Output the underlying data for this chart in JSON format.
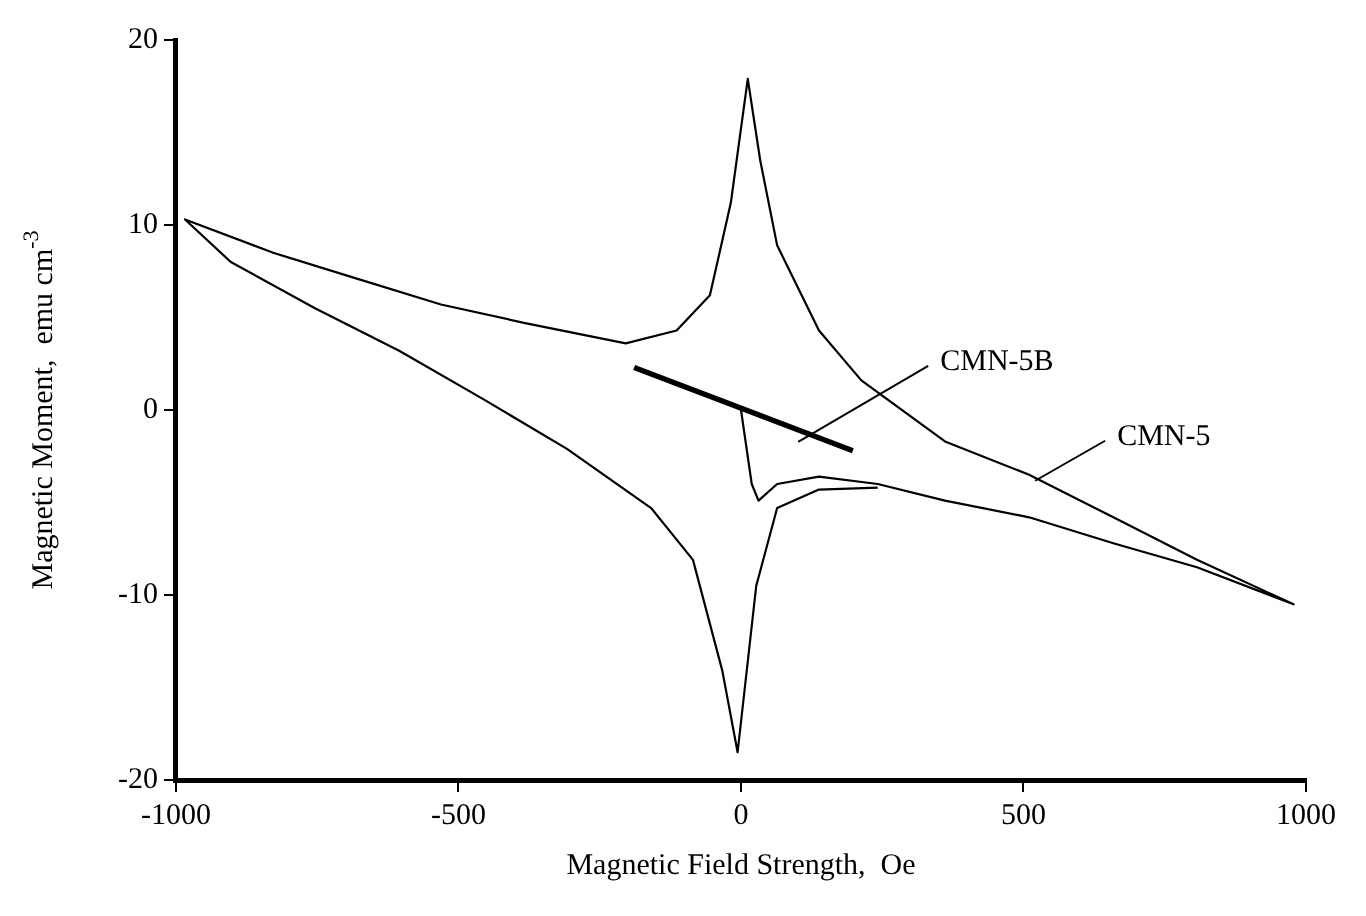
{
  "chart_data": {
    "type": "line",
    "xlabel": "Magnetic Field Strength,  Oe",
    "ylabel": "Magnetic Moment,  emu cm$^{-3}$",
    "xlim": [
      -1000,
      1000
    ],
    "xticks": [
      -1000,
      -500,
      0,
      500,
      1000
    ],
    "ylim": [
      -20,
      20
    ],
    "yticks": [
      -20,
      -10,
      0,
      10,
      20
    ],
    "grid": false,
    "legend": false,
    "marker": "none",
    "line_style": "solid",
    "series": [
      {
        "name": "CMN-5",
        "color": "#000000",
        "x": [
          0,
          19,
          31,
          64,
          138,
          242,
          361,
          510,
          659,
          807,
          978,
          807,
          659,
          510,
          361,
          213,
          138,
          64,
          34,
          12,
          -18,
          -55,
          -114,
          -204,
          -382,
          -531,
          -680,
          -828,
          -984,
          -903,
          -754,
          -605,
          -457,
          -308,
          -159,
          -85,
          -33,
          -6,
          27,
          64,
          138,
          242
        ],
        "values": [
          0,
          -4.0,
          -4.9,
          -4.0,
          -3.6,
          -4.0,
          -4.9,
          -5.8,
          -7.2,
          -8.5,
          -10.5,
          -8.1,
          -5.8,
          -3.5,
          -1.7,
          1.6,
          4.3,
          8.9,
          13.5,
          17.9,
          11.2,
          6.2,
          4.3,
          3.6,
          4.7,
          5.7,
          7.1,
          8.5,
          10.3,
          8.0,
          5.5,
          3.2,
          0.6,
          -2.1,
          -5.3,
          -8.1,
          -14.1,
          -18.5,
          -9.5,
          -5.3,
          -4.3,
          -4.2
        ]
      },
      {
        "name": "CMN-5B",
        "color": "#000000",
        "x": [
          -189,
          198
        ],
        "values": [
          2.3,
          -2.2
        ]
      }
    ]
  }
}
